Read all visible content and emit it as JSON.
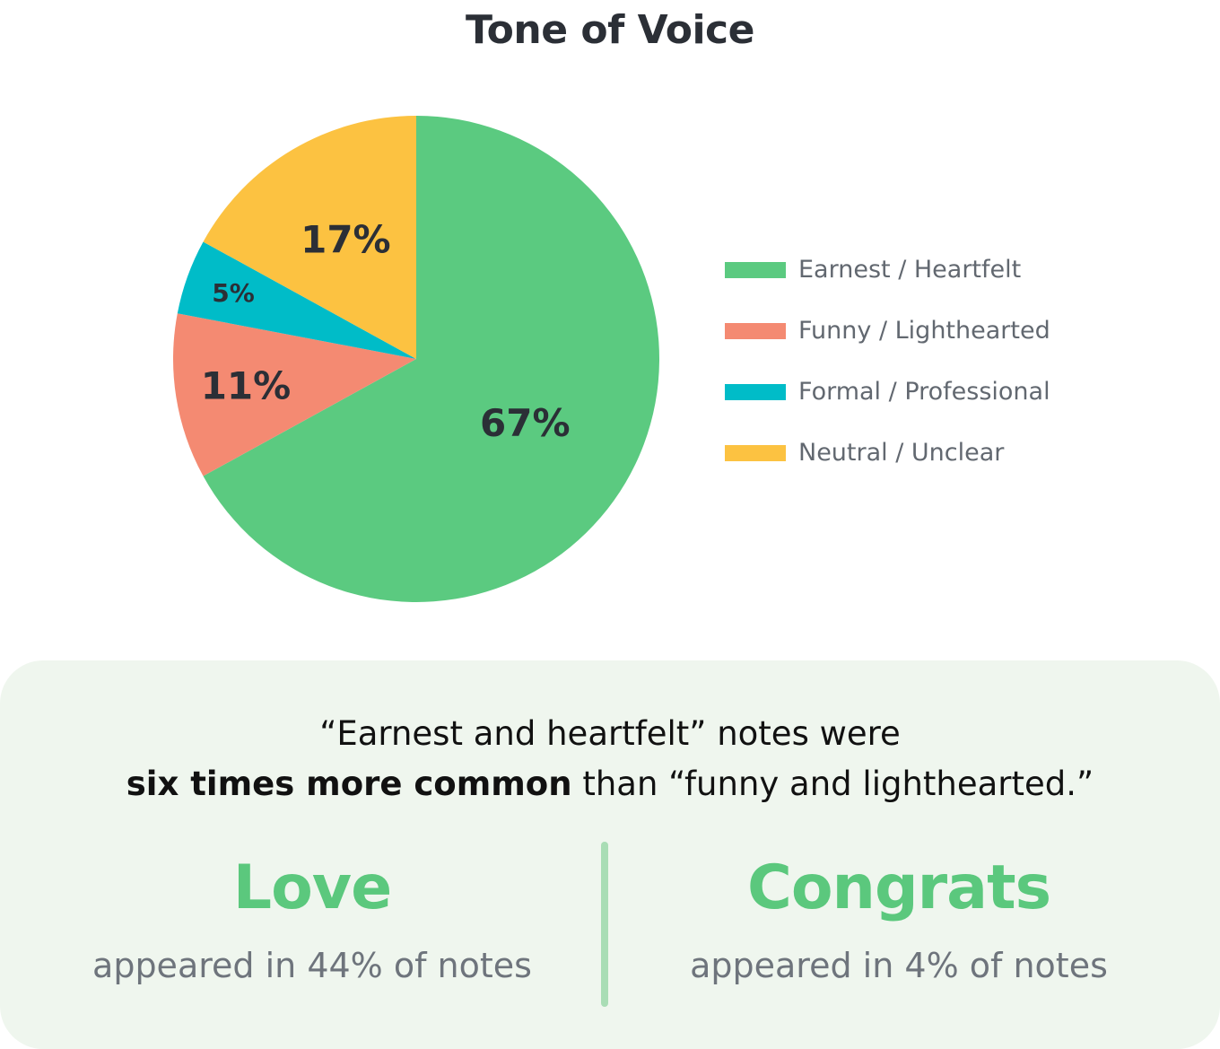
{
  "chart_data": {
    "type": "pie",
    "title": "Tone of Voice",
    "slices": [
      {
        "label": "Earnest / Heartfelt",
        "value": 67,
        "display": "67%",
        "color": "#5bca80"
      },
      {
        "label": "Funny / Lighthearted",
        "value": 11,
        "display": "11%",
        "color": "#f48a72"
      },
      {
        "label": "Formal / Professional",
        "value": 5,
        "display": "5%",
        "color": "#00bcc8"
      },
      {
        "label": "Neutral / Unclear",
        "value": 17,
        "display": "17%",
        "color": "#fcc241"
      }
    ],
    "legend_position": "right"
  },
  "summary": {
    "line1": "“Earnest and heartfelt” notes were",
    "line2_bold": "six times more common",
    "line2_rest": " than “funny and lighthearted.”"
  },
  "stats": [
    {
      "word": "Love",
      "caption": "appeared in 44% of notes"
    },
    {
      "word": "Congrats",
      "caption": "appeared in 4% of notes"
    }
  ],
  "colors": {
    "accent_green": "#5bc87d",
    "panel_background": "#eff6ee",
    "divider": "#a9ddb5"
  }
}
